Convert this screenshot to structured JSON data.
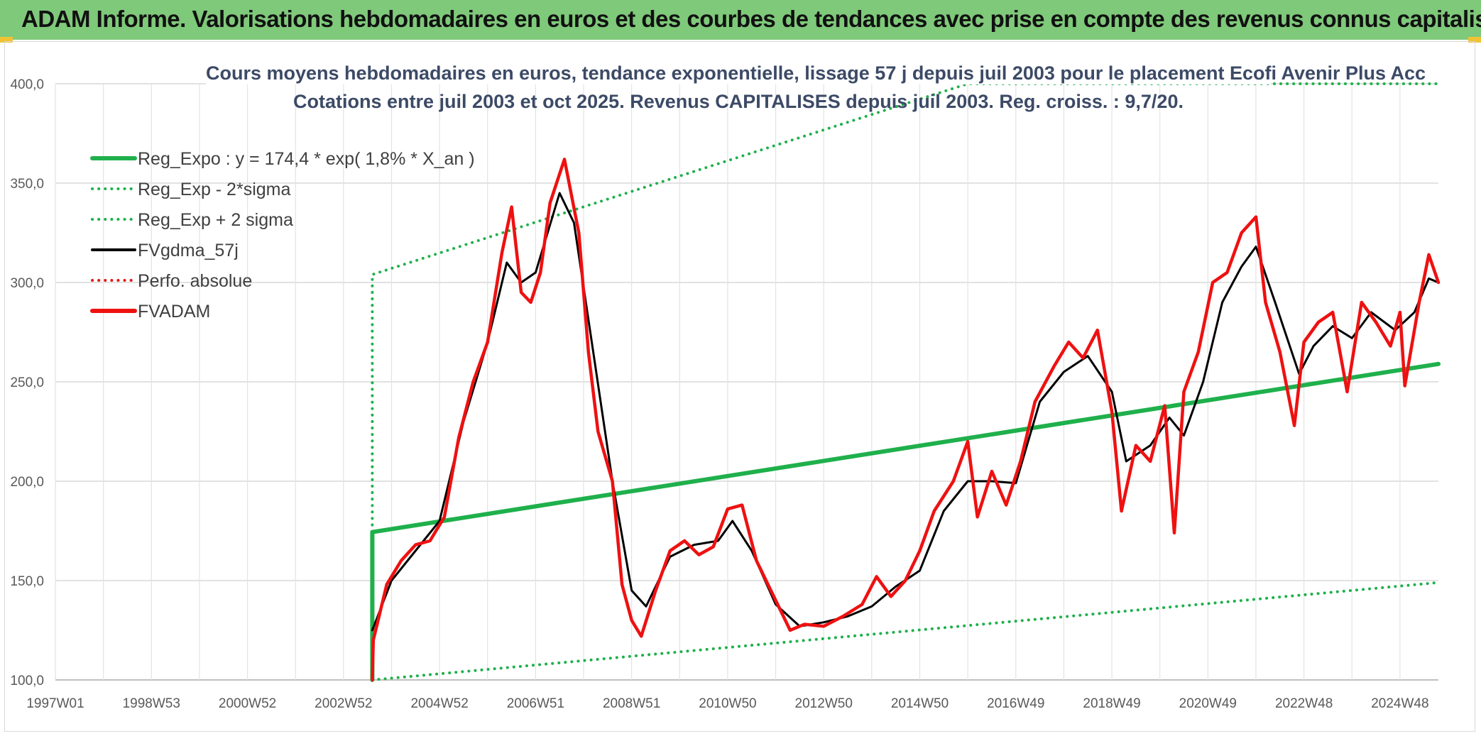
{
  "banner": {
    "title": "ADAM Informe. Valorisations hebdomadaires en euros et des courbes de tendances avec prise en compte des revenus connus capitalisés",
    "background": "#7fc97a"
  },
  "chart_data": {
    "type": "line",
    "title": "Cours moyens hebdomadaires en euros, tendance exponentielle, lissage 57 j depuis juil 2003 pour le placement Ecofi Avenir Plus Acc",
    "subtitle": "Cotations entre juil 2003 et oct 2025. Revenus CAPITALISES depuis juil 2003. Reg. croiss. : 9,7/20.",
    "xlabel": "",
    "ylabel": "",
    "xlim": [
      1997.0,
      2025.8
    ],
    "ylim": [
      100,
      400
    ],
    "y_ticks": [
      "100,0",
      "150,0",
      "200,0",
      "250,0",
      "300,0",
      "350,0",
      "400,0"
    ],
    "x_ticks": [
      {
        "label": "1997W01",
        "x": 1997.0
      },
      {
        "label": "1998W53",
        "x": 1999.0
      },
      {
        "label": "2000W52",
        "x": 2001.0
      },
      {
        "label": "2002W52",
        "x": 2003.0
      },
      {
        "label": "2004W52",
        "x": 2005.0
      },
      {
        "label": "2006W51",
        "x": 2007.0
      },
      {
        "label": "2008W51",
        "x": 2009.0
      },
      {
        "label": "2010W50",
        "x": 2011.0
      },
      {
        "label": "2012W50",
        "x": 2013.0
      },
      {
        "label": "2014W50",
        "x": 2015.0
      },
      {
        "label": "2016W49",
        "x": 2017.0
      },
      {
        "label": "2018W49",
        "x": 2019.0
      },
      {
        "label": "2020W49",
        "x": 2021.0
      },
      {
        "label": "2022W48",
        "x": 2023.0
      },
      {
        "label": "2024W48",
        "x": 2025.0
      }
    ],
    "grid": true,
    "legend_position": "top-left",
    "series": [
      {
        "name": "Reg_Expo : y = 174,4 * exp( 1,8% *  X_an )",
        "color": "#1fb04c",
        "style": "solid",
        "points": [
          [
            2003.6,
            100
          ],
          [
            2003.6,
            174.4
          ],
          [
            2025.8,
            259
          ]
        ]
      },
      {
        "name": "Reg_Exp - 2*sigma",
        "color": "#1fb04c",
        "style": "dotted",
        "points": [
          [
            2003.6,
            100
          ],
          [
            2025.8,
            149
          ]
        ]
      },
      {
        "name": "Reg_Exp + 2 sigma",
        "color": "#1fb04c",
        "style": "dotted",
        "points": [
          [
            2003.6,
            100
          ],
          [
            2003.6,
            304
          ],
          [
            2016.0,
            400
          ],
          [
            2020.8,
            400
          ],
          [
            2025.8,
            400
          ]
        ]
      },
      {
        "name": "FVgdma_57j",
        "color": "#000000",
        "style": "solid",
        "points": [
          [
            2003.6,
            125
          ],
          [
            2004.0,
            150
          ],
          [
            2004.5,
            165
          ],
          [
            2005.0,
            180
          ],
          [
            2005.5,
            230
          ],
          [
            2006.0,
            270
          ],
          [
            2006.4,
            310
          ],
          [
            2006.7,
            300
          ],
          [
            2007.0,
            305
          ],
          [
            2007.5,
            345
          ],
          [
            2007.8,
            330
          ],
          [
            2008.2,
            265
          ],
          [
            2008.6,
            200
          ],
          [
            2009.0,
            145
          ],
          [
            2009.3,
            137
          ],
          [
            2009.8,
            162
          ],
          [
            2010.3,
            168
          ],
          [
            2010.8,
            170
          ],
          [
            2011.1,
            180
          ],
          [
            2011.5,
            165
          ],
          [
            2012.0,
            138
          ],
          [
            2012.5,
            127
          ],
          [
            2013.0,
            129
          ],
          [
            2013.5,
            132
          ],
          [
            2014.0,
            137
          ],
          [
            2014.5,
            147
          ],
          [
            2015.0,
            155
          ],
          [
            2015.5,
            185
          ],
          [
            2016.0,
            200
          ],
          [
            2016.5,
            200
          ],
          [
            2017.0,
            199
          ],
          [
            2017.5,
            240
          ],
          [
            2018.0,
            255
          ],
          [
            2018.5,
            263
          ],
          [
            2019.0,
            245
          ],
          [
            2019.3,
            210
          ],
          [
            2019.8,
            218
          ],
          [
            2020.2,
            232
          ],
          [
            2020.5,
            223
          ],
          [
            2020.9,
            250
          ],
          [
            2021.3,
            290
          ],
          [
            2021.7,
            308
          ],
          [
            2022.0,
            318
          ],
          [
            2022.4,
            290
          ],
          [
            2022.9,
            254
          ],
          [
            2023.2,
            268
          ],
          [
            2023.6,
            278
          ],
          [
            2024.0,
            272
          ],
          [
            2024.4,
            285
          ],
          [
            2024.9,
            276
          ],
          [
            2025.3,
            285
          ],
          [
            2025.6,
            302
          ],
          [
            2025.8,
            300
          ]
        ]
      },
      {
        "name": "Perfo. absolue",
        "color": "#e41a1c",
        "style": "dotted",
        "points": []
      },
      {
        "name": "FVADAM",
        "color": "#ee1111",
        "style": "solid",
        "points": [
          [
            2003.6,
            100
          ],
          [
            2003.62,
            120
          ],
          [
            2003.9,
            148
          ],
          [
            2004.2,
            160
          ],
          [
            2004.5,
            168
          ],
          [
            2004.8,
            170
          ],
          [
            2005.1,
            182
          ],
          [
            2005.4,
            222
          ],
          [
            2005.7,
            250
          ],
          [
            2006.0,
            270
          ],
          [
            2006.3,
            315
          ],
          [
            2006.5,
            338
          ],
          [
            2006.7,
            295
          ],
          [
            2006.9,
            290
          ],
          [
            2007.1,
            305
          ],
          [
            2007.3,
            340
          ],
          [
            2007.6,
            362
          ],
          [
            2007.9,
            325
          ],
          [
            2008.1,
            265
          ],
          [
            2008.3,
            225
          ],
          [
            2008.6,
            200
          ],
          [
            2008.8,
            148
          ],
          [
            2009.0,
            130
          ],
          [
            2009.2,
            122
          ],
          [
            2009.5,
            145
          ],
          [
            2009.8,
            165
          ],
          [
            2010.1,
            170
          ],
          [
            2010.4,
            163
          ],
          [
            2010.7,
            167
          ],
          [
            2011.0,
            186
          ],
          [
            2011.3,
            188
          ],
          [
            2011.6,
            160
          ],
          [
            2012.0,
            140
          ],
          [
            2012.3,
            125
          ],
          [
            2012.6,
            128
          ],
          [
            2013.0,
            127
          ],
          [
            2013.4,
            132
          ],
          [
            2013.8,
            138
          ],
          [
            2014.1,
            152
          ],
          [
            2014.4,
            142
          ],
          [
            2014.7,
            150
          ],
          [
            2015.0,
            165
          ],
          [
            2015.3,
            185
          ],
          [
            2015.7,
            200
          ],
          [
            2016.0,
            220
          ],
          [
            2016.2,
            182
          ],
          [
            2016.5,
            205
          ],
          [
            2016.8,
            188
          ],
          [
            2017.1,
            210
          ],
          [
            2017.4,
            240
          ],
          [
            2017.8,
            258
          ],
          [
            2018.1,
            270
          ],
          [
            2018.4,
            262
          ],
          [
            2018.7,
            276
          ],
          [
            2019.0,
            235
          ],
          [
            2019.2,
            185
          ],
          [
            2019.5,
            218
          ],
          [
            2019.8,
            210
          ],
          [
            2020.1,
            238
          ],
          [
            2020.3,
            174
          ],
          [
            2020.5,
            245
          ],
          [
            2020.8,
            265
          ],
          [
            2021.1,
            300
          ],
          [
            2021.4,
            305
          ],
          [
            2021.7,
            325
          ],
          [
            2022.0,
            333
          ],
          [
            2022.2,
            290
          ],
          [
            2022.5,
            265
          ],
          [
            2022.8,
            228
          ],
          [
            2023.0,
            270
          ],
          [
            2023.3,
            280
          ],
          [
            2023.6,
            285
          ],
          [
            2023.9,
            245
          ],
          [
            2024.2,
            290
          ],
          [
            2024.5,
            280
          ],
          [
            2024.8,
            268
          ],
          [
            2025.0,
            285
          ],
          [
            2025.1,
            248
          ],
          [
            2025.4,
            290
          ],
          [
            2025.6,
            314
          ],
          [
            2025.8,
            300
          ]
        ]
      }
    ]
  }
}
